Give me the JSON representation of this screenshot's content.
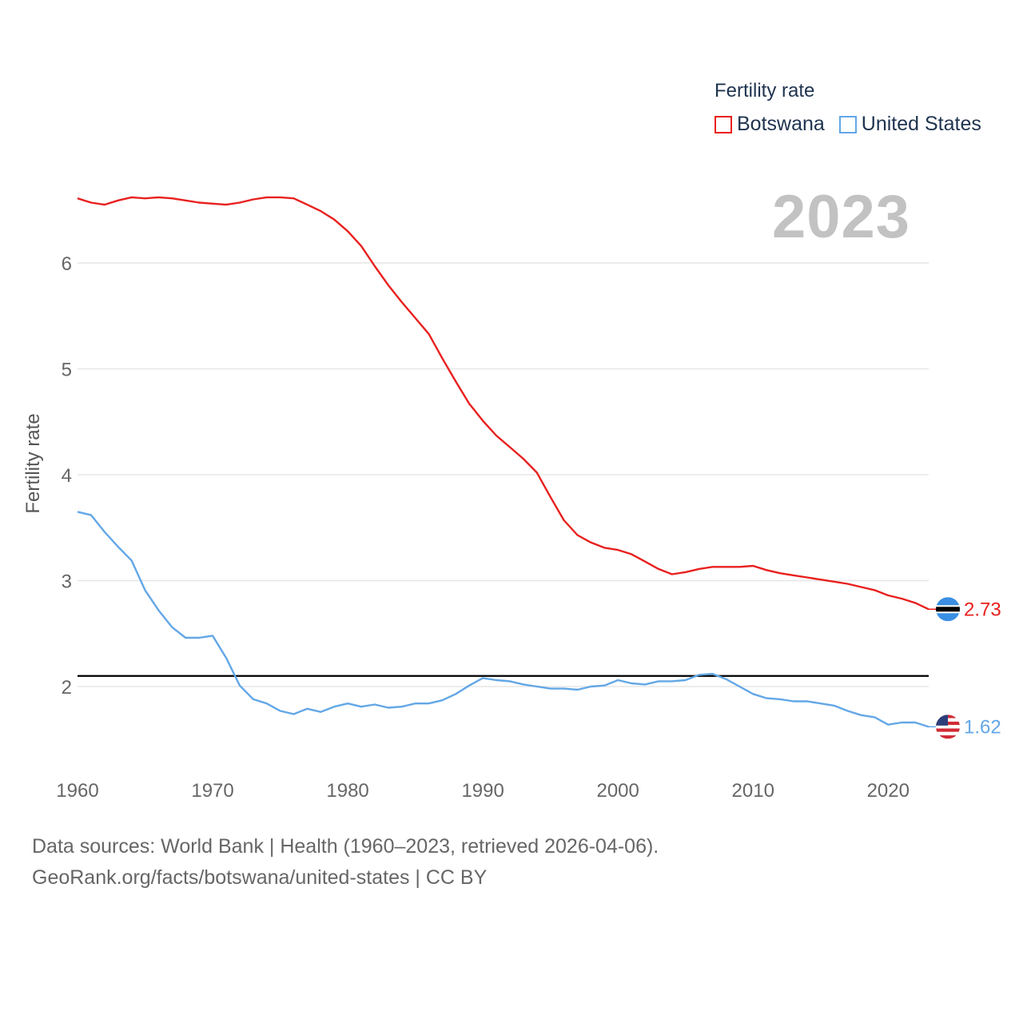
{
  "legend": {
    "title": "Fertility rate",
    "items": [
      {
        "label": "Botswana",
        "color": "#e8201e"
      },
      {
        "label": "United States",
        "color": "#63a7e6"
      }
    ]
  },
  "year_display": "2023",
  "footer": {
    "line1": "Data sources: World Bank | Health (1960–2023, retrieved 2026-04-06).",
    "line2": "GeoRank.org/facts/botswana/united-states | CC BY"
  },
  "chart_data": {
    "type": "line",
    "title": "Fertility rate",
    "xlabel": "",
    "ylabel": "Fertility rate",
    "xlim": [
      1960,
      2023
    ],
    "ylim": [
      1.3,
      6.9
    ],
    "xticks": [
      1960,
      1970,
      1980,
      1990,
      2000,
      2010,
      2020
    ],
    "yticks": [
      2,
      3,
      4,
      5,
      6
    ],
    "reference_line": 2.1,
    "grid": true,
    "legend_position": "top-right",
    "x": [
      1960,
      1961,
      1962,
      1963,
      1964,
      1965,
      1966,
      1967,
      1968,
      1969,
      1970,
      1971,
      1972,
      1973,
      1974,
      1975,
      1976,
      1977,
      1978,
      1979,
      1980,
      1981,
      1982,
      1983,
      1984,
      1985,
      1986,
      1987,
      1988,
      1989,
      1990,
      1991,
      1992,
      1993,
      1994,
      1995,
      1996,
      1997,
      1998,
      1999,
      2000,
      2001,
      2002,
      2003,
      2004,
      2005,
      2006,
      2007,
      2008,
      2009,
      2010,
      2011,
      2012,
      2013,
      2014,
      2015,
      2016,
      2017,
      2018,
      2019,
      2020,
      2021,
      2022,
      2023
    ],
    "series": [
      {
        "name": "Botswana",
        "color": "#e8201e",
        "end_label": "2.73",
        "flag": "botswana-flag-icon",
        "values": [
          6.61,
          6.57,
          6.55,
          6.59,
          6.62,
          6.61,
          6.62,
          6.61,
          6.59,
          6.57,
          6.56,
          6.55,
          6.57,
          6.6,
          6.62,
          6.62,
          6.61,
          6.55,
          6.49,
          6.41,
          6.3,
          6.16,
          5.97,
          5.79,
          5.63,
          5.48,
          5.33,
          5.1,
          4.88,
          4.67,
          4.51,
          4.37,
          4.26,
          4.15,
          4.02,
          3.79,
          3.57,
          3.43,
          3.36,
          3.31,
          3.29,
          3.25,
          3.18,
          3.11,
          3.06,
          3.08,
          3.11,
          3.13,
          3.13,
          3.13,
          3.14,
          3.1,
          3.07,
          3.05,
          3.03,
          3.01,
          2.99,
          2.97,
          2.94,
          2.91,
          2.86,
          2.83,
          2.79,
          2.73
        ]
      },
      {
        "name": "United States",
        "color": "#63a7e6",
        "end_label": "1.62",
        "flag": "usa-flag-icon",
        "values": [
          3.65,
          3.62,
          3.46,
          3.32,
          3.19,
          2.91,
          2.72,
          2.56,
          2.46,
          2.46,
          2.48,
          2.27,
          2.01,
          1.88,
          1.84,
          1.77,
          1.74,
          1.79,
          1.76,
          1.81,
          1.84,
          1.81,
          1.83,
          1.8,
          1.81,
          1.84,
          1.84,
          1.87,
          1.93,
          2.01,
          2.08,
          2.06,
          2.05,
          2.02,
          2.0,
          1.98,
          1.98,
          1.97,
          2.0,
          2.01,
          2.06,
          2.03,
          2.02,
          2.05,
          2.05,
          2.06,
          2.11,
          2.12,
          2.07,
          2.0,
          1.93,
          1.89,
          1.88,
          1.86,
          1.86,
          1.84,
          1.82,
          1.77,
          1.73,
          1.71,
          1.64,
          1.66,
          1.66,
          1.62
        ]
      }
    ]
  }
}
